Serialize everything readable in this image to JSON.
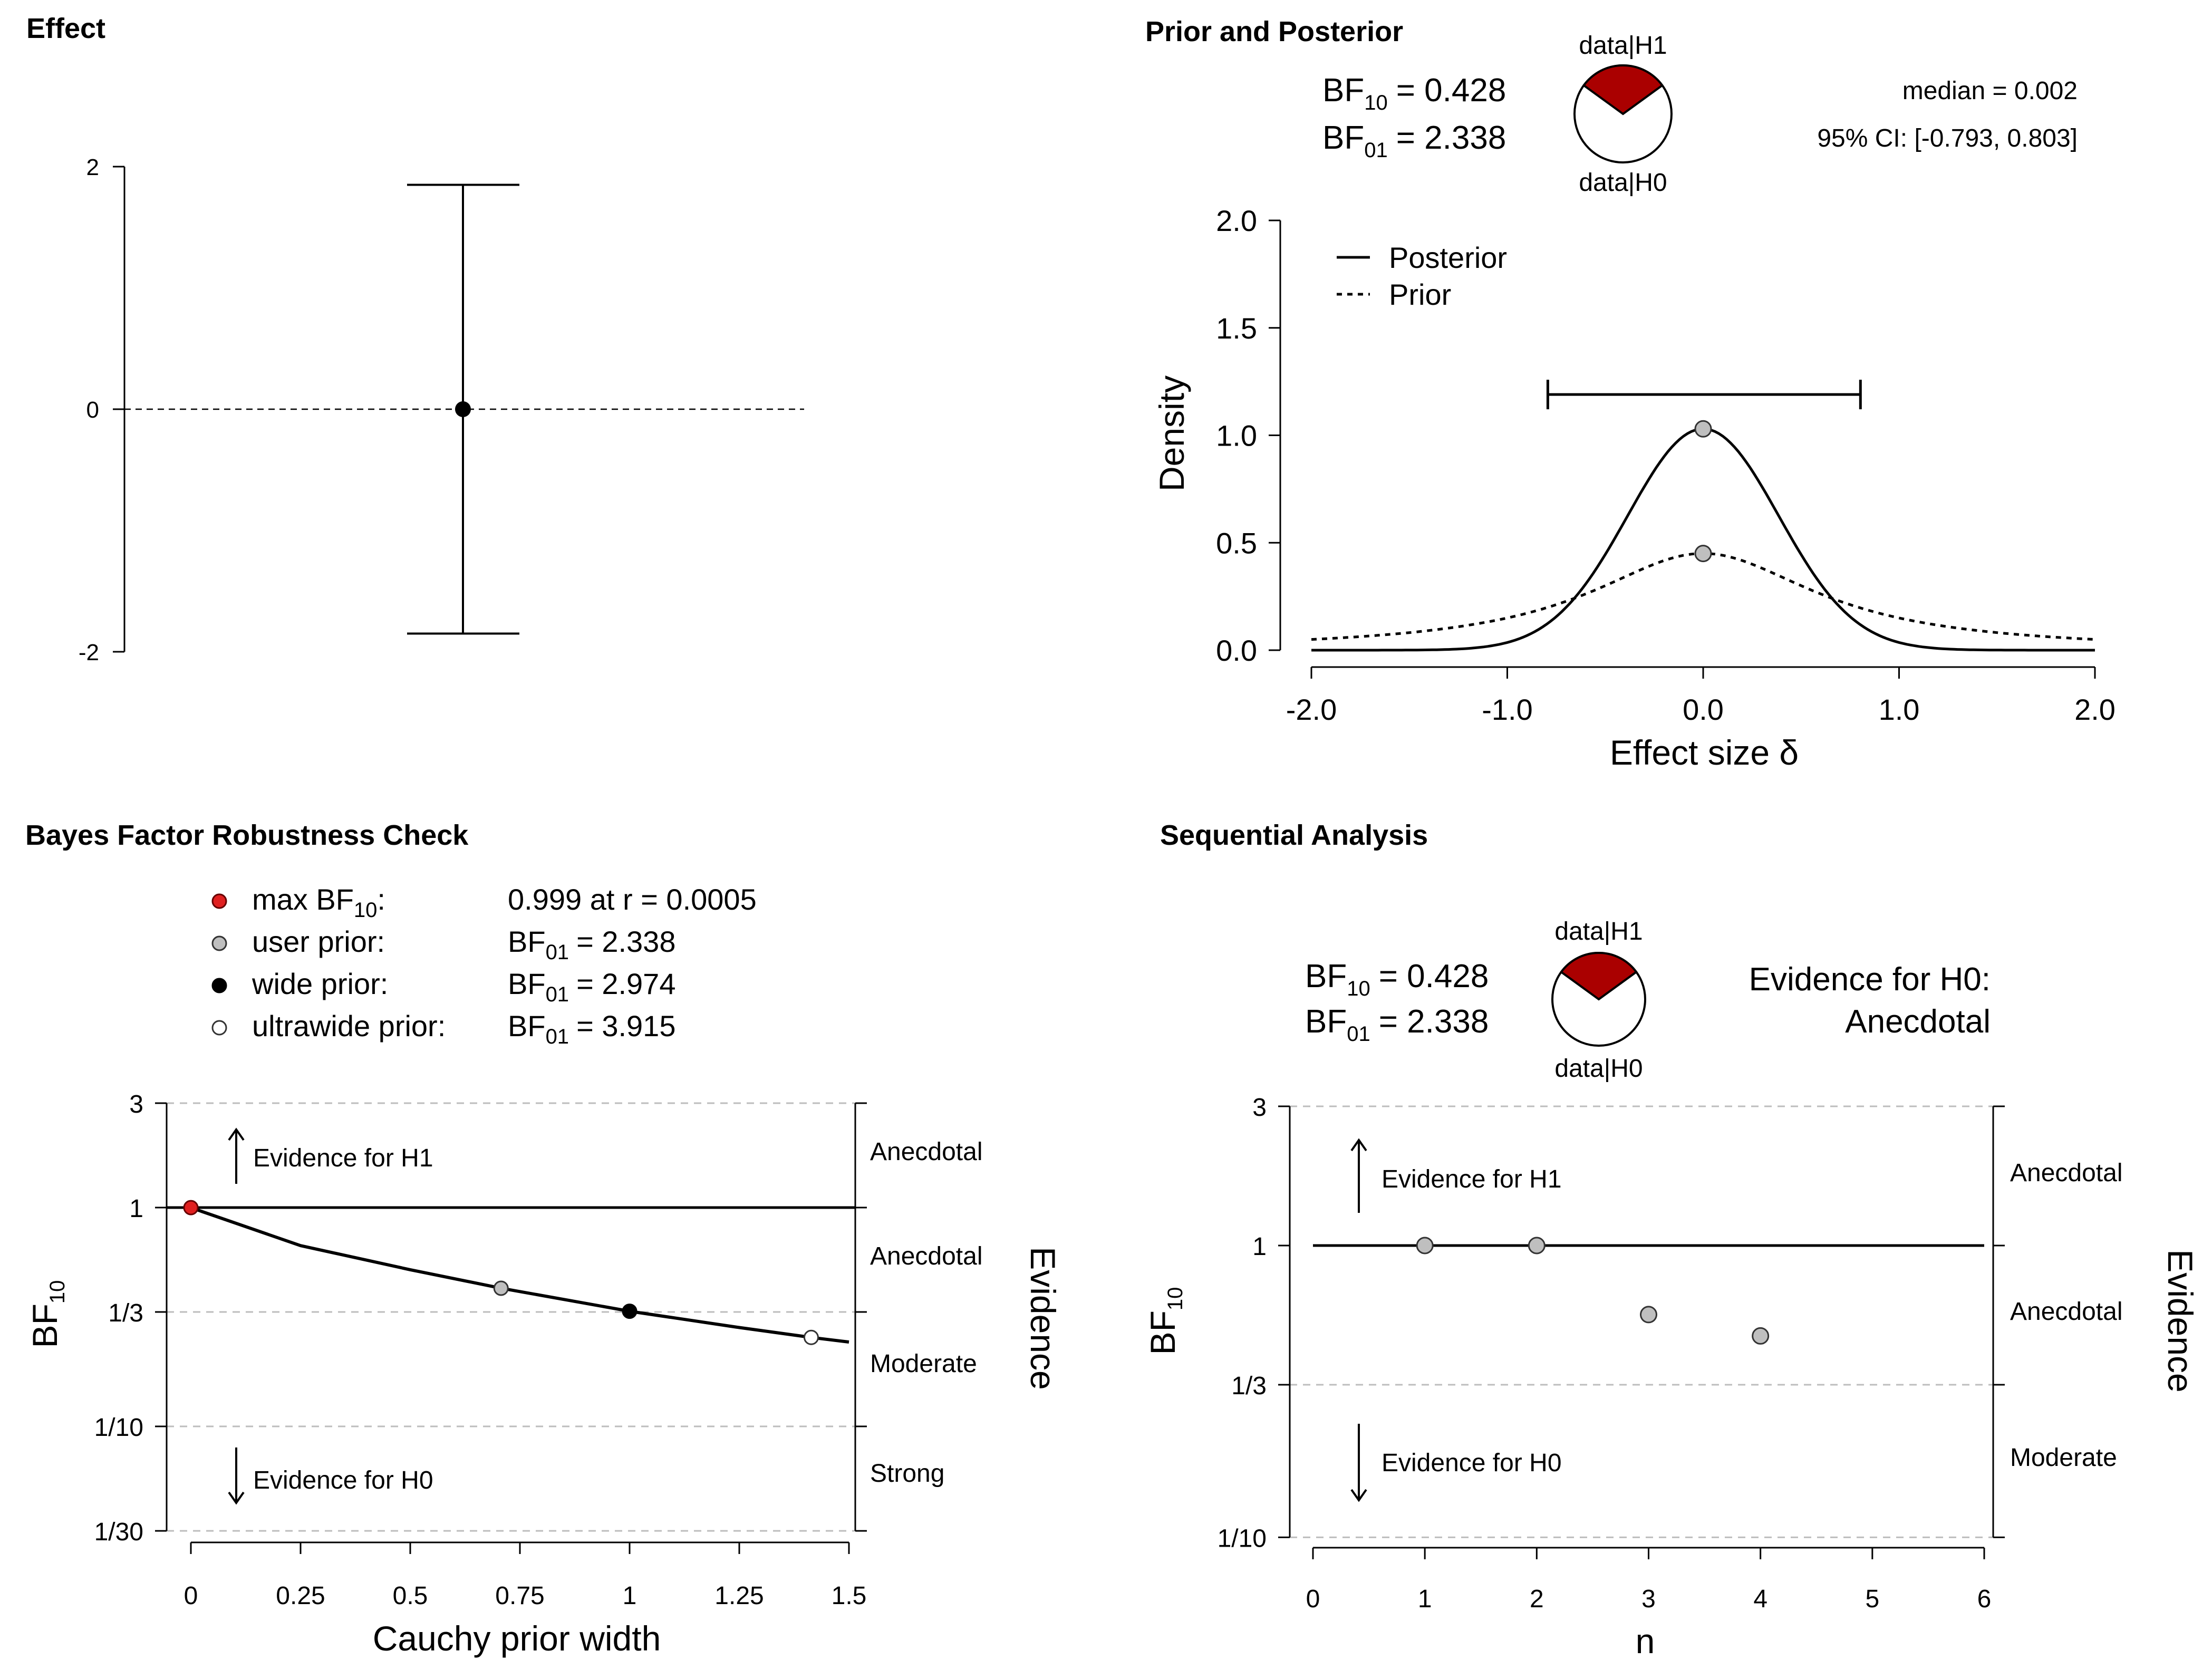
{
  "panels": {
    "effect": {
      "title": "Effect"
    },
    "prior_posterior": {
      "title": "Prior and Posterior"
    },
    "robustness": {
      "title": "Bayes Factor Robustness Check"
    },
    "sequential": {
      "title": "Sequential Analysis"
    }
  },
  "colors": {
    "accent": "#aa0000",
    "grid": "#bdbdbd",
    "point_gray": "#bfbfbf",
    "max_red": "#e02020"
  },
  "chart_data": [
    {
      "type": "scatter",
      "panel": "effect",
      "title": "Effect",
      "ylim": [
        -2,
        2
      ],
      "yticks": [
        {
          "value": 2,
          "label": "2"
        },
        {
          "value": 0,
          "label": "0"
        },
        {
          "value": -2,
          "label": "-2"
        }
      ],
      "point": 0,
      "ci": [
        -1.85,
        1.85
      ],
      "reference_line": 0
    },
    {
      "type": "line",
      "panel": "prior_posterior",
      "title": "Prior and Posterior",
      "xlabel": "Effect size δ",
      "ylabel": "Density",
      "xlim": [
        -2,
        2
      ],
      "ylim": [
        0,
        2
      ],
      "xticks": [
        {
          "value": -2,
          "label": "-2.0"
        },
        {
          "value": -1,
          "label": "-1.0"
        },
        {
          "value": 0,
          "label": "0.0"
        },
        {
          "value": 1,
          "label": "1.0"
        },
        {
          "value": 2,
          "label": "2.0"
        }
      ],
      "yticks": [
        {
          "value": 0,
          "label": "0.0"
        },
        {
          "value": 0.5,
          "label": "0.5"
        },
        {
          "value": 1,
          "label": "1.0"
        },
        {
          "value": 1.5,
          "label": "1.5"
        },
        {
          "value": 2,
          "label": "2.0"
        }
      ],
      "series": [
        {
          "name": "Posterior",
          "style": "solid",
          "peak": 1.03,
          "sd": 0.386
        },
        {
          "name": "Prior",
          "style": "dotted",
          "cauchy_scale": 0.707
        }
      ],
      "legend": [
        "Posterior",
        "Prior"
      ],
      "ci_bar": [
        -0.793,
        0.803
      ],
      "ci_bar_y": 1.19,
      "points": [
        {
          "x": 0,
          "y": 1.03
        },
        {
          "x": 0,
          "y": 0.45
        }
      ],
      "bf10_label": "BF",
      "bf10_sub": "10",
      "bf10_value": "= 0.428",
      "bf01_label": "BF",
      "bf01_sub": "01",
      "bf01_value": "= 2.338",
      "pie": {
        "top_label": "data|H1",
        "bottom_label": "data|H0",
        "h1_fraction": 0.3
      },
      "median_text": "median = 0.002",
      "ci_text": "95% CI: [-0.793, 0.803]"
    },
    {
      "type": "line",
      "panel": "robustness",
      "title": "Bayes Factor Robustness Check",
      "xlabel": "Cauchy prior width",
      "ylabel": "BF",
      "ylabel_sub": "10",
      "right_label": "Evidence",
      "xlim": [
        0,
        1.5
      ],
      "xticks": [
        {
          "value": 0,
          "label": "0"
        },
        {
          "value": 0.25,
          "label": "0.25"
        },
        {
          "value": 0.5,
          "label": "0.5"
        },
        {
          "value": 0.75,
          "label": "0.75"
        },
        {
          "value": 1,
          "label": "1"
        },
        {
          "value": 1.25,
          "label": "1.25"
        },
        {
          "value": 1.5,
          "label": "1.5"
        }
      ],
      "yticks": [
        {
          "value": 3,
          "label": "3"
        },
        {
          "value": 1,
          "label": "1"
        },
        {
          "value": 0.3333,
          "label": "1/3"
        },
        {
          "value": 0.1,
          "label": "1/10"
        },
        {
          "value": 0.0333,
          "label": "1/30"
        }
      ],
      "dashed_levels": [
        3,
        0.3333,
        0.1,
        0.0333
      ],
      "reference_level": 1,
      "curve": {
        "x": [
          0,
          0.25,
          0.5,
          0.707,
          1.0,
          1.25,
          1.414,
          1.5
        ],
        "y": [
          0.999,
          0.67,
          0.52,
          0.428,
          0.336,
          0.283,
          0.255,
          0.243
        ]
      },
      "points": [
        {
          "x": 0,
          "y": 0.999,
          "kind": "max"
        },
        {
          "x": 0.707,
          "y": 0.428,
          "kind": "user"
        },
        {
          "x": 1.0,
          "y": 0.336,
          "kind": "wide"
        },
        {
          "x": 1.414,
          "y": 0.255,
          "kind": "ultrawide"
        }
      ],
      "legend": [
        {
          "kind": "max",
          "label": "max BF",
          "sub": "10",
          "label_suffix": ":",
          "value": "0.999 at r = 0.0005"
        },
        {
          "kind": "user",
          "label": "user prior:",
          "value_label": "BF",
          "value_sub": "01",
          "value": "= 2.338"
        },
        {
          "kind": "wide",
          "label": "wide prior:",
          "value_label": "BF",
          "value_sub": "01",
          "value": "= 2.974"
        },
        {
          "kind": "ultrawide",
          "label": "ultrawide prior:",
          "value_label": "BF",
          "value_sub": "01",
          "value": "= 3.915"
        }
      ],
      "evidence_h1": "Evidence for H1",
      "evidence_h0": "Evidence for H0",
      "right_categories": [
        "Anecdotal",
        "Anecdotal",
        "Moderate",
        "Strong"
      ]
    },
    {
      "type": "scatter",
      "panel": "sequential",
      "title": "Sequential Analysis",
      "xlabel": "n",
      "ylabel": "BF",
      "ylabel_sub": "10",
      "right_label": "Evidence",
      "xlim": [
        0,
        6
      ],
      "xticks": [
        {
          "value": 0,
          "label": "0"
        },
        {
          "value": 1,
          "label": "1"
        },
        {
          "value": 2,
          "label": "2"
        },
        {
          "value": 3,
          "label": "3"
        },
        {
          "value": 4,
          "label": "4"
        },
        {
          "value": 5,
          "label": "5"
        },
        {
          "value": 6,
          "label": "6"
        }
      ],
      "yticks": [
        {
          "value": 3,
          "label": "3"
        },
        {
          "value": 1,
          "label": "1"
        },
        {
          "value": 0.3333,
          "label": "1/3"
        },
        {
          "value": 0.1,
          "label": "1/10"
        }
      ],
      "dashed_levels": [
        3,
        0.3333,
        0.1
      ],
      "reference_level": 1,
      "points": [
        {
          "x": 1,
          "y": 1
        },
        {
          "x": 2,
          "y": 1
        },
        {
          "x": 3,
          "y": 0.58
        },
        {
          "x": 4,
          "y": 0.49
        }
      ],
      "bf10_label": "BF",
      "bf10_sub": "10",
      "bf10_value": "= 0.428",
      "bf01_label": "BF",
      "bf01_sub": "01",
      "bf01_value": "= 2.338",
      "pie": {
        "top_label": "data|H1",
        "bottom_label": "data|H0",
        "h1_fraction": 0.3
      },
      "evidence_line1": "Evidence for H0:",
      "evidence_line2": "Anecdotal",
      "evidence_h1": "Evidence for H1",
      "evidence_h0": "Evidence for H0",
      "right_categories": [
        "Anecdotal",
        "Anecdotal",
        "Moderate"
      ]
    }
  ]
}
